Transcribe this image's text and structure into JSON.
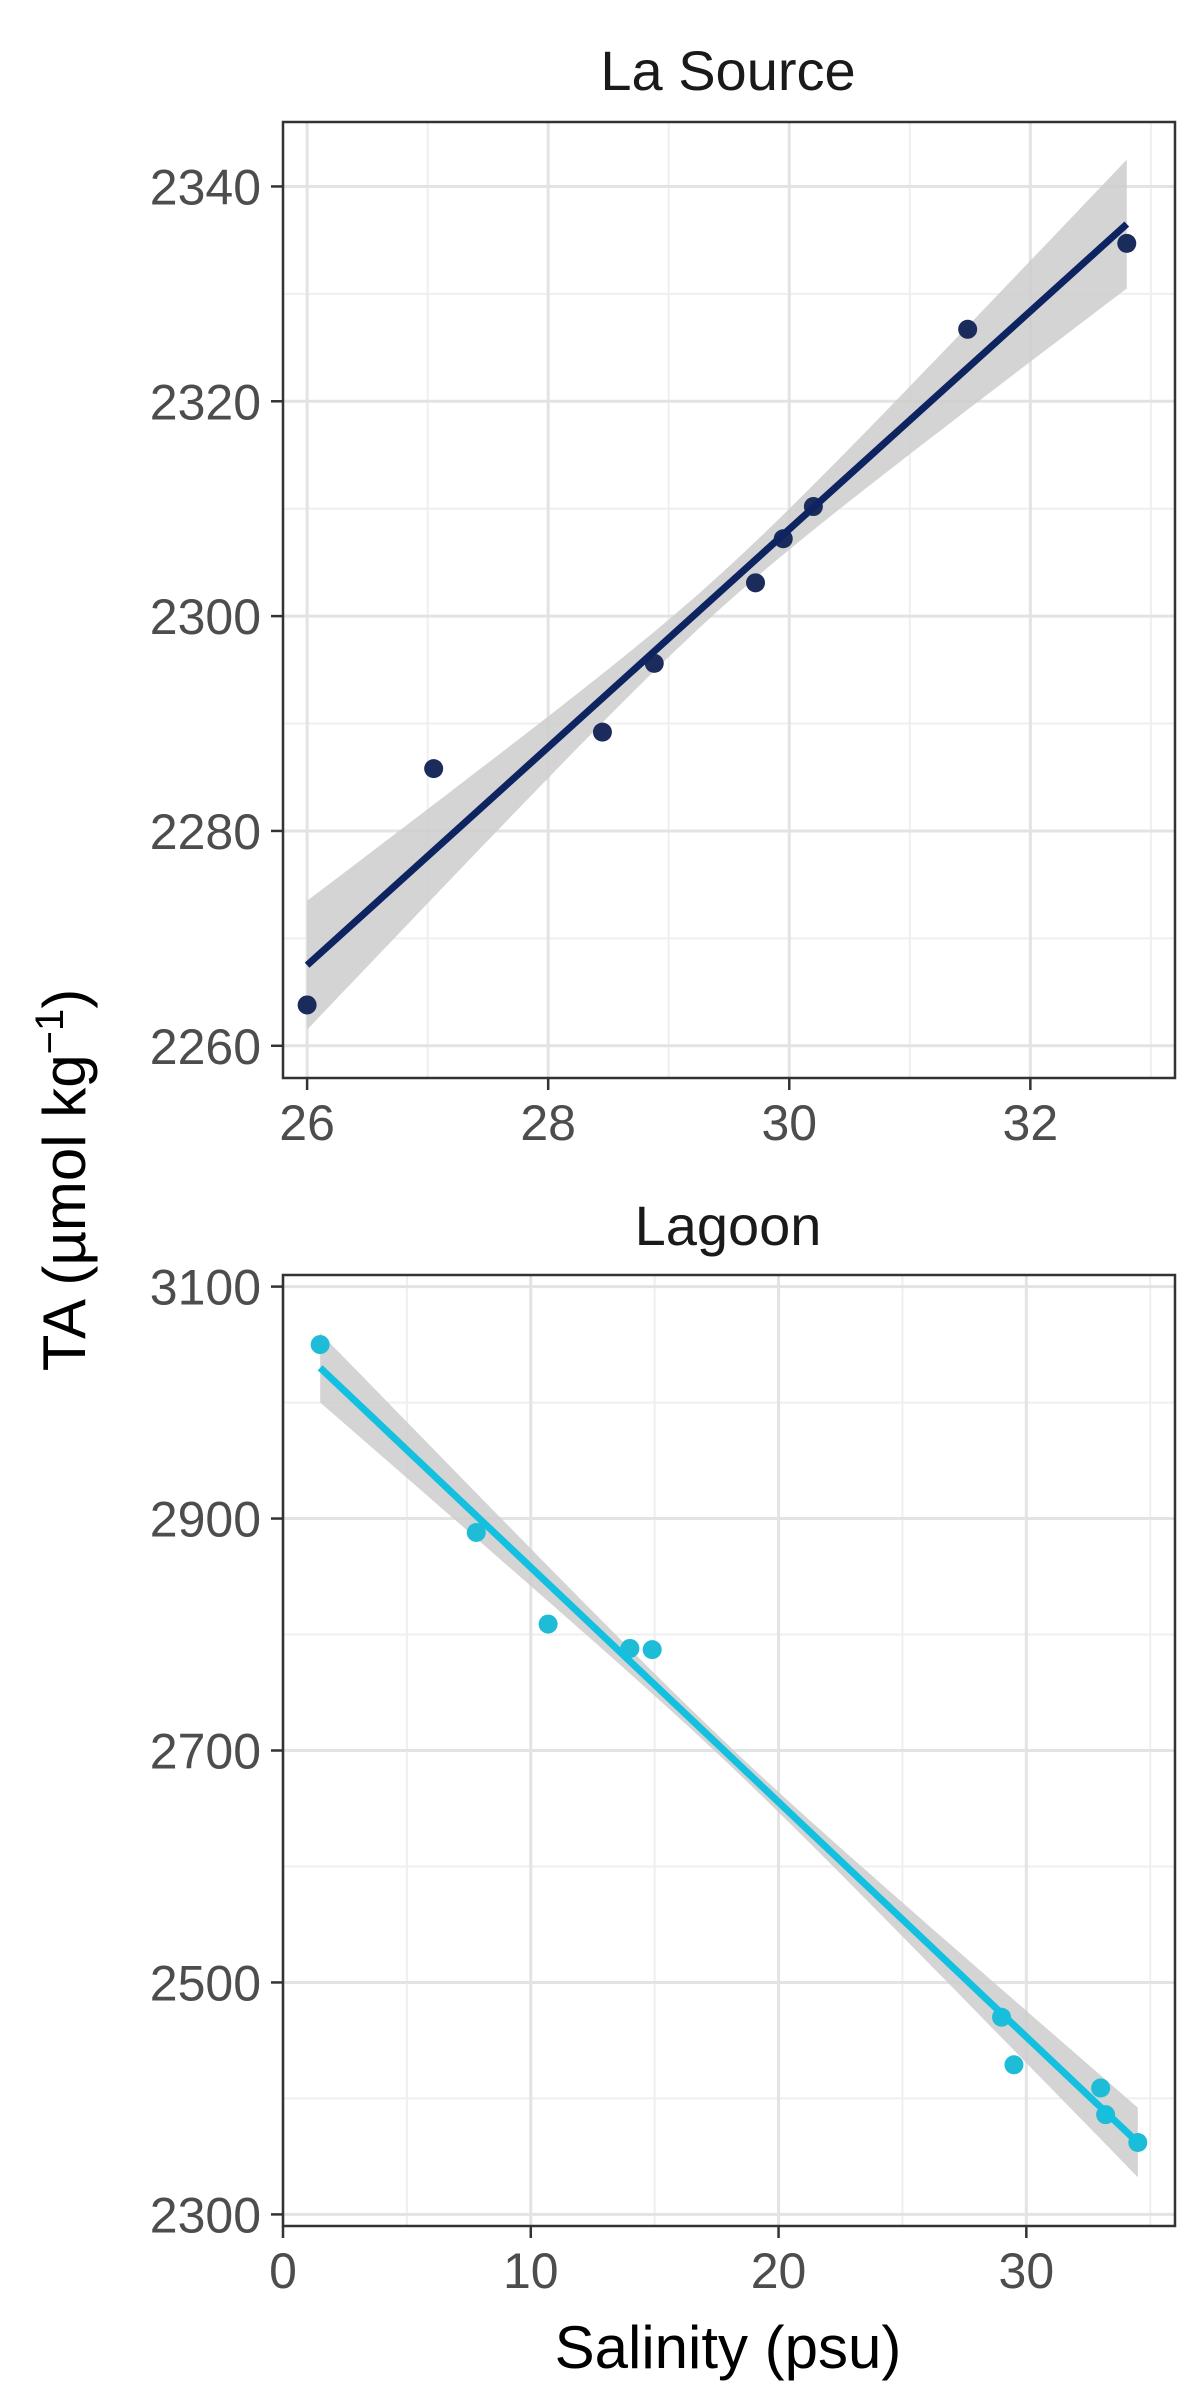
{
  "ylabel": {
    "prefix": "TA (µmol kg",
    "sup": "−1",
    "suffix": ")"
  },
  "xlabel": "Salinity (psu)",
  "chart_data": [
    {
      "type": "scatter",
      "title": "La Source",
      "xlim": [
        25.8,
        33.2
      ],
      "ylim": [
        2257,
        2346
      ],
      "xticks": [
        26,
        28,
        30,
        32
      ],
      "xticklabels": [
        "26",
        "28",
        "30",
        "32"
      ],
      "yticks": [
        2260,
        2280,
        2300,
        2320,
        2340
      ],
      "yticklabels": [
        "2260",
        "2280",
        "2300",
        "2320",
        "2340"
      ],
      "grid": true,
      "point_color": "#1a2b5c",
      "line_color": "#0d2461",
      "band_color": "#cccccc",
      "fit": {
        "x": [
          26.0,
          32.8
        ],
        "y": [
          2267.5,
          2336.5
        ]
      },
      "band_half_width": {
        "ends": 6.0,
        "center": 1.6
      },
      "points": [
        {
          "x": 26.0,
          "y": 2263.8
        },
        {
          "x": 27.05,
          "y": 2285.8
        },
        {
          "x": 28.45,
          "y": 2289.2
        },
        {
          "x": 28.88,
          "y": 2295.6
        },
        {
          "x": 29.72,
          "y": 2303.1
        },
        {
          "x": 29.95,
          "y": 2307.2
        },
        {
          "x": 30.2,
          "y": 2310.2
        },
        {
          "x": 31.48,
          "y": 2326.7
        },
        {
          "x": 32.8,
          "y": 2334.7
        }
      ]
    },
    {
      "type": "scatter",
      "title": "Lagoon",
      "xlim": [
        0,
        36
      ],
      "ylim": [
        2290,
        3110
      ],
      "xticks": [
        0,
        10,
        20,
        30
      ],
      "xticklabels": [
        "0",
        "10",
        "20",
        "30"
      ],
      "yticks": [
        2300,
        2500,
        2700,
        2900,
        3100
      ],
      "yticklabels": [
        "2300",
        "2500",
        "2700",
        "2900",
        "3100"
      ],
      "grid": true,
      "point_color": "#1fbcd8",
      "line_color": "#14c0e0",
      "band_color": "#cccccc",
      "fit": {
        "x": [
          1.5,
          34.5
        ],
        "y": [
          3030,
          2362
        ]
      },
      "band_half_width": {
        "ends": 30,
        "center": 8
      },
      "points": [
        {
          "x": 1.5,
          "y": 3050
        },
        {
          "x": 7.8,
          "y": 2888
        },
        {
          "x": 10.7,
          "y": 2809
        },
        {
          "x": 14.0,
          "y": 2788
        },
        {
          "x": 14.9,
          "y": 2787
        },
        {
          "x": 29.0,
          "y": 2470
        },
        {
          "x": 29.5,
          "y": 2429
        },
        {
          "x": 33.0,
          "y": 2409
        },
        {
          "x": 33.2,
          "y": 2386
        },
        {
          "x": 34.5,
          "y": 2362
        }
      ]
    }
  ]
}
